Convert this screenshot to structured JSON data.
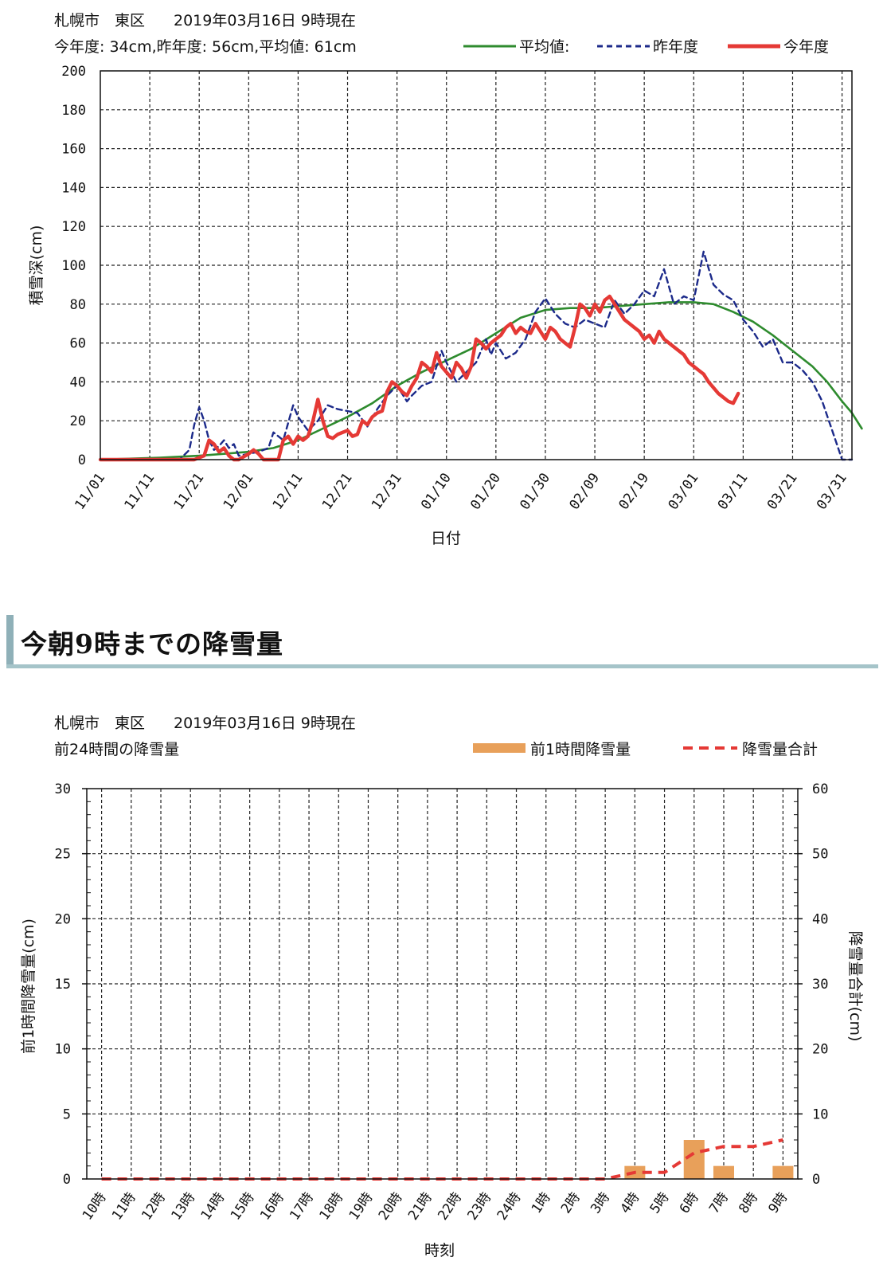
{
  "chart_data": [
    {
      "type": "line",
      "header": {
        "station": "札幌市　東区",
        "timestamp": "2019年03月16日 9時現在",
        "summary": "今年度: 34cm,昨年度: 56cm,平均値: 61cm"
      },
      "xlabel": "日付",
      "ylabel": "積雪深(cm)",
      "ylim": [
        0,
        200
      ],
      "yticks": [
        0,
        20,
        40,
        60,
        80,
        100,
        120,
        140,
        160,
        180,
        200
      ],
      "xrange_days": [
        0,
        152
      ],
      "xticks": [
        {
          "label": "11/01",
          "day": 0
        },
        {
          "label": "11/11",
          "day": 10
        },
        {
          "label": "11/21",
          "day": 20
        },
        {
          "label": "12/01",
          "day": 30
        },
        {
          "label": "12/11",
          "day": 40
        },
        {
          "label": "12/21",
          "day": 50
        },
        {
          "label": "12/31",
          "day": 60
        },
        {
          "label": "01/10",
          "day": 70
        },
        {
          "label": "01/20",
          "day": 80
        },
        {
          "label": "01/30",
          "day": 90
        },
        {
          "label": "02/09",
          "day": 100
        },
        {
          "label": "02/19",
          "day": 110
        },
        {
          "label": "03/01",
          "day": 120
        },
        {
          "label": "03/11",
          "day": 130
        },
        {
          "label": "03/21",
          "day": 140
        },
        {
          "label": "03/31",
          "day": 150
        }
      ],
      "grid": true,
      "legend_position": "top-right",
      "series": [
        {
          "name": "平均値:",
          "color": "#2e8b2e",
          "style": "solid",
          "points": [
            [
              0,
              0
            ],
            [
              12,
              1
            ],
            [
              20,
              2
            ],
            [
              25,
              3
            ],
            [
              30,
              4
            ],
            [
              35,
              6
            ],
            [
              40,
              10
            ],
            [
              45,
              16
            ],
            [
              50,
              22
            ],
            [
              55,
              29
            ],
            [
              60,
              38
            ],
            [
              65,
              45
            ],
            [
              70,
              51
            ],
            [
              75,
              57
            ],
            [
              80,
              65
            ],
            [
              85,
              73
            ],
            [
              90,
              77
            ],
            [
              95,
              78
            ],
            [
              100,
              78
            ],
            [
              105,
              79
            ],
            [
              110,
              80
            ],
            [
              115,
              81
            ],
            [
              120,
              81
            ],
            [
              124,
              80
            ],
            [
              128,
              76
            ],
            [
              132,
              71
            ],
            [
              136,
              64
            ],
            [
              140,
              56
            ],
            [
              144,
              48
            ],
            [
              147,
              40
            ],
            [
              150,
              30
            ],
            [
              152,
              24
            ],
            [
              155,
              16
            ]
          ]
        },
        {
          "name": "昨年度",
          "color": "#1c2a8a",
          "style": "dashed",
          "points": [
            [
              0,
              0
            ],
            [
              16,
              0
            ],
            [
              18,
              5
            ],
            [
              19,
              18
            ],
            [
              20,
              27
            ],
            [
              21,
              20
            ],
            [
              22,
              10
            ],
            [
              23,
              5
            ],
            [
              24,
              7
            ],
            [
              25,
              10
            ],
            [
              26,
              6
            ],
            [
              27,
              8
            ],
            [
              28,
              2
            ],
            [
              30,
              3
            ],
            [
              32,
              4
            ],
            [
              34,
              6
            ],
            [
              35,
              14
            ],
            [
              37,
              10
            ],
            [
              39,
              28
            ],
            [
              40,
              22
            ],
            [
              42,
              15
            ],
            [
              44,
              20
            ],
            [
              46,
              28
            ],
            [
              48,
              26
            ],
            [
              50,
              25
            ],
            [
              52,
              24
            ],
            [
              54,
              17
            ],
            [
              56,
              26
            ],
            [
              58,
              33
            ],
            [
              60,
              38
            ],
            [
              62,
              30
            ],
            [
              63,
              33
            ],
            [
              65,
              38
            ],
            [
              67,
              40
            ],
            [
              69,
              56
            ],
            [
              70,
              50
            ],
            [
              72,
              40
            ],
            [
              74,
              45
            ],
            [
              76,
              50
            ],
            [
              78,
              62
            ],
            [
              79,
              54
            ],
            [
              80,
              60
            ],
            [
              82,
              52
            ],
            [
              84,
              55
            ],
            [
              86,
              62
            ],
            [
              88,
              76
            ],
            [
              90,
              83
            ],
            [
              92,
              75
            ],
            [
              94,
              70
            ],
            [
              96,
              68
            ],
            [
              98,
              72
            ],
            [
              100,
              70
            ],
            [
              102,
              68
            ],
            [
              104,
              82
            ],
            [
              106,
              75
            ],
            [
              108,
              80
            ],
            [
              110,
              87
            ],
            [
              112,
              84
            ],
            [
              114,
              98
            ],
            [
              116,
              80
            ],
            [
              118,
              84
            ],
            [
              120,
              82
            ],
            [
              122,
              107
            ],
            [
              124,
              90
            ],
            [
              126,
              85
            ],
            [
              128,
              82
            ],
            [
              130,
              72
            ],
            [
              132,
              66
            ],
            [
              134,
              58
            ],
            [
              136,
              62
            ],
            [
              138,
              50
            ],
            [
              140,
              50
            ],
            [
              142,
              46
            ],
            [
              144,
              40
            ],
            [
              146,
              30
            ],
            [
              148,
              15
            ],
            [
              150,
              0
            ],
            [
              152,
              0
            ]
          ]
        },
        {
          "name": "今年度",
          "color": "#e53935",
          "style": "solid",
          "points": [
            [
              0,
              0
            ],
            [
              19,
              0
            ],
            [
              21,
              2
            ],
            [
              22,
              10
            ],
            [
              23,
              8
            ],
            [
              24,
              4
            ],
            [
              25,
              6
            ],
            [
              26,
              2
            ],
            [
              27,
              0
            ],
            [
              28,
              0
            ],
            [
              30,
              3
            ],
            [
              31,
              5
            ],
            [
              32,
              3
            ],
            [
              33,
              0
            ],
            [
              35,
              0
            ],
            [
              36,
              0
            ],
            [
              37,
              10
            ],
            [
              38,
              12
            ],
            [
              39,
              8
            ],
            [
              40,
              12
            ],
            [
              41,
              10
            ],
            [
              42,
              12
            ],
            [
              43,
              20
            ],
            [
              44,
              31
            ],
            [
              45,
              20
            ],
            [
              46,
              12
            ],
            [
              47,
              11
            ],
            [
              48,
              13
            ],
            [
              49,
              14
            ],
            [
              50,
              15
            ],
            [
              51,
              12
            ],
            [
              52,
              13
            ],
            [
              53,
              20
            ],
            [
              54,
              18
            ],
            [
              55,
              22
            ],
            [
              56,
              24
            ],
            [
              57,
              25
            ],
            [
              58,
              35
            ],
            [
              59,
              40
            ],
            [
              60,
              38
            ],
            [
              61,
              35
            ],
            [
              62,
              33
            ],
            [
              63,
              38
            ],
            [
              64,
              42
            ],
            [
              65,
              50
            ],
            [
              66,
              48
            ],
            [
              67,
              45
            ],
            [
              68,
              55
            ],
            [
              69,
              48
            ],
            [
              70,
              45
            ],
            [
              71,
              42
            ],
            [
              72,
              50
            ],
            [
              73,
              47
            ],
            [
              74,
              42
            ],
            [
              75,
              48
            ],
            [
              76,
              62
            ],
            [
              77,
              60
            ],
            [
              78,
              57
            ],
            [
              79,
              60
            ],
            [
              80,
              62
            ],
            [
              81,
              64
            ],
            [
              82,
              68
            ],
            [
              83,
              70
            ],
            [
              84,
              65
            ],
            [
              85,
              68
            ],
            [
              86,
              66
            ],
            [
              87,
              65
            ],
            [
              88,
              70
            ],
            [
              89,
              66
            ],
            [
              90,
              62
            ],
            [
              91,
              68
            ],
            [
              92,
              66
            ],
            [
              93,
              62
            ],
            [
              94,
              60
            ],
            [
              95,
              58
            ],
            [
              96,
              68
            ],
            [
              97,
              80
            ],
            [
              98,
              78
            ],
            [
              99,
              74
            ],
            [
              100,
              80
            ],
            [
              101,
              76
            ],
            [
              102,
              82
            ],
            [
              103,
              84
            ],
            [
              104,
              80
            ],
            [
              105,
              76
            ],
            [
              106,
              72
            ],
            [
              107,
              70
            ],
            [
              108,
              68
            ],
            [
              109,
              66
            ],
            [
              110,
              62
            ],
            [
              111,
              64
            ],
            [
              112,
              60
            ],
            [
              113,
              66
            ],
            [
              114,
              62
            ],
            [
              115,
              60
            ],
            [
              116,
              58
            ],
            [
              117,
              56
            ],
            [
              118,
              54
            ],
            [
              119,
              50
            ],
            [
              120,
              48
            ],
            [
              121,
              46
            ],
            [
              122,
              44
            ],
            [
              123,
              40
            ],
            [
              124,
              37
            ],
            [
              125,
              34
            ],
            [
              126,
              32
            ],
            [
              127,
              30
            ],
            [
              128,
              29
            ],
            [
              129,
              34
            ]
          ]
        }
      ]
    },
    {
      "type": "bar",
      "header": {
        "station": "札幌市　東区",
        "timestamp": "2019年03月16日 9時現在",
        "subtitle": "前24時間の降雪量"
      },
      "xlabel": "時刻",
      "ylabel_left": "前1時間降雪量(cm)",
      "ylabel_right": "降雪量合計(cm)",
      "ylim_left": [
        0,
        30
      ],
      "ylim_right": [
        0,
        60
      ],
      "yticks_left": [
        0,
        5,
        10,
        15,
        20,
        25,
        30
      ],
      "yticks_right": [
        0,
        10,
        20,
        30,
        40,
        50,
        60
      ],
      "categories": [
        "10時",
        "11時",
        "12時",
        "13時",
        "14時",
        "15時",
        "16時",
        "17時",
        "18時",
        "19時",
        "20時",
        "21時",
        "22時",
        "23時",
        "24時",
        "1時",
        "2時",
        "3時",
        "4時",
        "5時",
        "6時",
        "7時",
        "8時",
        "9時"
      ],
      "grid": true,
      "legend_position": "top-right",
      "series": [
        {
          "name": "前1時間降雪量",
          "type": "bar",
          "axis": "left",
          "color": "#e8a05a",
          "values": [
            0,
            0,
            0,
            0,
            0,
            0,
            0,
            0,
            0,
            0,
            0,
            0,
            0,
            0,
            0,
            0,
            0,
            0,
            1,
            0,
            3,
            1,
            0,
            1
          ]
        },
        {
          "name": "降雪量合計",
          "type": "line",
          "axis": "right",
          "color": "#e53935",
          "style": "dashed",
          "values": [
            0,
            0,
            0,
            0,
            0,
            0,
            0,
            0,
            0,
            0,
            0,
            0,
            0,
            0,
            0,
            0,
            0,
            0,
            1,
            1,
            4,
            5,
            5,
            6
          ]
        }
      ]
    }
  ],
  "section": {
    "title": "今朝9時までの降雪量"
  }
}
